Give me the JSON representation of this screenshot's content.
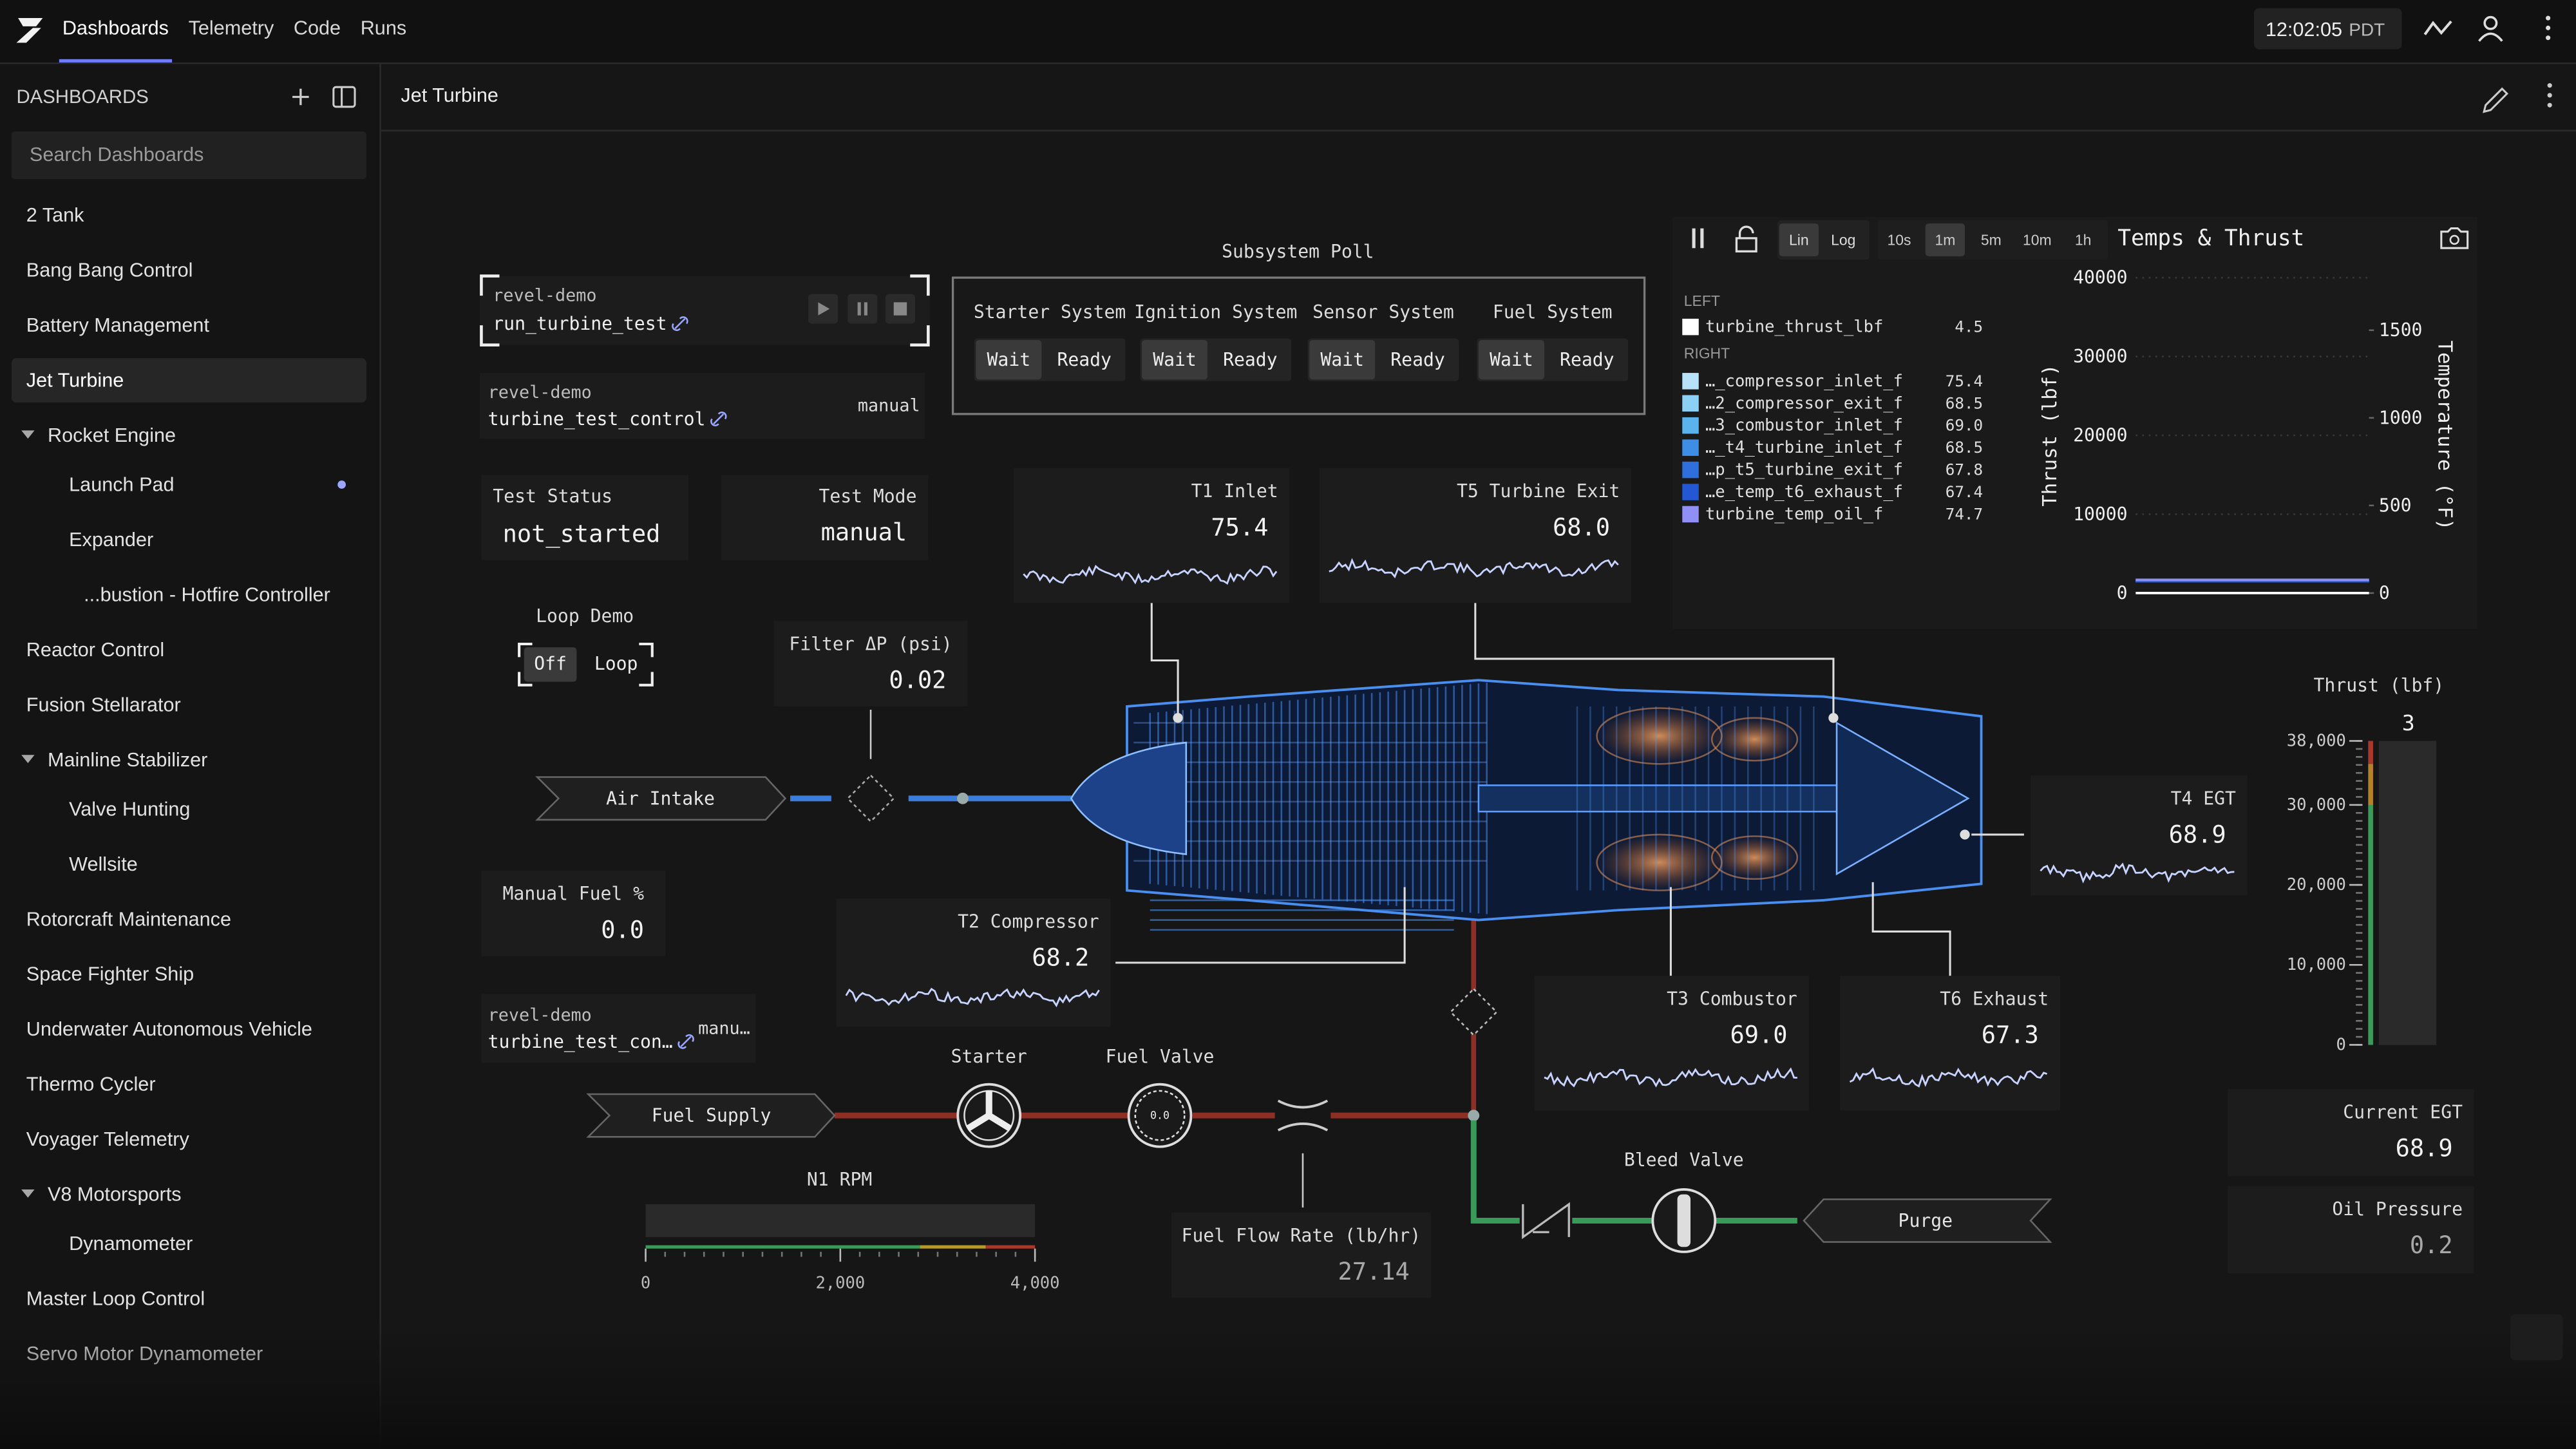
{
  "topbar": {
    "tabs": [
      "Dashboards",
      "Telemetry",
      "Code",
      "Runs"
    ],
    "active_tab": 0,
    "clock": "12:02:05",
    "timezone": "PDT"
  },
  "sidebar": {
    "title": "DASHBOARDS",
    "search_placeholder": "Search Dashboards",
    "items": [
      {
        "label": "2 Tank",
        "level": 0
      },
      {
        "label": "Bang Bang Control",
        "level": 0
      },
      {
        "label": "Battery Management",
        "level": 0
      },
      {
        "label": "Jet Turbine",
        "level": 0,
        "selected": true
      },
      {
        "label": "Rocket Engine",
        "level": 0,
        "group": true
      },
      {
        "label": "Launch Pad",
        "level": 1,
        "dot": true
      },
      {
        "label": "Expander",
        "level": 1
      },
      {
        "label": "...bustion - Hotfire Controller",
        "level": 2
      },
      {
        "label": "Reactor Control",
        "level": 0
      },
      {
        "label": "Fusion Stellarator",
        "level": 0
      },
      {
        "label": "Mainline Stabilizer",
        "level": 0,
        "group": true
      },
      {
        "label": "Valve Hunting",
        "level": 1
      },
      {
        "label": "Wellsite",
        "level": 1
      },
      {
        "label": "Rotorcraft Maintenance",
        "level": 0
      },
      {
        "label": "Space Fighter Ship",
        "level": 0
      },
      {
        "label": "Underwater Autonomous Vehicle",
        "level": 0
      },
      {
        "label": "Thermo Cycler",
        "level": 0
      },
      {
        "label": "Voyager Telemetry",
        "level": 0
      },
      {
        "label": "V8 Motorsports",
        "level": 0,
        "group": true
      },
      {
        "label": "Dynamometer",
        "level": 1
      },
      {
        "label": "Master Loop Control",
        "level": 0
      },
      {
        "label": "Servo Motor Dynamometer",
        "level": 0
      }
    ]
  },
  "page": {
    "title": "Jet Turbine"
  },
  "sequences": [
    {
      "project": "revel-demo",
      "name": "run_turbine_test",
      "controls": true
    },
    {
      "project": "revel-demo",
      "name": "turbine_test_control",
      "mode": "manual"
    },
    {
      "project": "revel-demo",
      "name": "turbine_test_con…",
      "mode": "manu…"
    }
  ],
  "subsystem_poll": {
    "title": "Subsystem Poll",
    "systems": [
      {
        "name": "Starter System",
        "options": [
          "Wait",
          "Ready"
        ],
        "selected": 0
      },
      {
        "name": "Ignition System",
        "options": [
          "Wait",
          "Ready"
        ],
        "selected": 0
      },
      {
        "name": "Sensor System",
        "options": [
          "Wait",
          "Ready"
        ],
        "selected": 0
      },
      {
        "name": "Fuel System",
        "options": [
          "Wait",
          "Ready"
        ],
        "selected": 0
      }
    ]
  },
  "test_status": {
    "label": "Test Status",
    "value": "not_started"
  },
  "test_mode": {
    "label": "Test Mode",
    "value": "manual"
  },
  "loop_demo": {
    "title": "Loop Demo",
    "options": [
      "Off",
      "Loop"
    ],
    "selected": 0
  },
  "readouts": [
    {
      "label": "T1 Inlet",
      "value": "75.4",
      "sparkline": true
    },
    {
      "label": "T5 Turbine Exit",
      "value": "68.0",
      "sparkline": true
    },
    {
      "label": "Filter ΔP (psi)",
      "value": "0.02"
    },
    {
      "label": "T4 EGT",
      "value": "68.9",
      "sparkline": true
    },
    {
      "label": "Manual Fuel %",
      "value": "0.0"
    },
    {
      "label": "T2 Compressor",
      "value": "68.2",
      "sparkline": true
    },
    {
      "label": "T3 Combustor",
      "value": "69.0",
      "sparkline": true
    },
    {
      "label": "T6 Exhaust",
      "value": "67.3",
      "sparkline": true
    },
    {
      "label": "Fuel Flow Rate (lb/hr)",
      "value": "27.14"
    },
    {
      "label": "Current EGT",
      "value": "68.9"
    },
    {
      "label": "Oil Pressure",
      "value": "0.2"
    }
  ],
  "schematic": {
    "air_intake": "Air Intake",
    "fuel_supply": "Fuel Supply",
    "purge": "Purge",
    "starter": "Starter",
    "fuel_valve": "Fuel Valve",
    "fuel_valve_reading": "0.0",
    "bleed_valve": "Bleed Valve"
  },
  "n1_rpm": {
    "label": "N1 RPM",
    "xlim": [
      0,
      4000
    ],
    "xticks": [
      0,
      {
        "value": 2000,
        "label": "2,000"
      },
      {
        "value": 4000,
        "label": "4,000"
      }
    ]
  },
  "thrust_gauge": {
    "label": "Thrust (lbf)",
    "value": "3",
    "ylim": [
      0,
      38000
    ],
    "yticks": [
      0,
      {
        "value": 10000,
        "label": "10,000"
      },
      {
        "value": 20000,
        "label": "20,000"
      },
      {
        "value": 30000,
        "label": "30,000"
      },
      {
        "value": 38000,
        "label": "38,000"
      }
    ]
  },
  "temps_thrust": {
    "type": "line",
    "title": "Temps & Thrust",
    "scale_options": [
      "Lin",
      "Log"
    ],
    "scale": 0,
    "windows": [
      "10s",
      "1m",
      "5m",
      "10m",
      "1h"
    ],
    "window": 1,
    "left_title": "LEFT",
    "right_title": "RIGHT",
    "ylabel": "Thrust (lbf)",
    "y2label": "Temperature (°F)",
    "ylim": [
      0,
      40000
    ],
    "yticks": [
      0,
      10000,
      20000,
      30000,
      40000
    ],
    "y2lim": [
      0,
      1800
    ],
    "y2ticks": [
      0,
      500,
      1000,
      1500
    ],
    "grid": true,
    "series": [
      {
        "name": "turbine_thrust_lbf",
        "color": "#ffffff",
        "value": "4.5"
      },
      {
        "name": "…_compressor_inlet_f",
        "color": "#b8e2f8",
        "value": "75.4",
        "axis": "y2"
      },
      {
        "name": "…2_compressor_exit_f",
        "color": "#8dd0f5",
        "value": "68.5",
        "axis": "y2"
      },
      {
        "name": "…3_combustor_inlet_f",
        "color": "#5bb3ee",
        "value": "69.0",
        "axis": "y2"
      },
      {
        "name": "…_t4_turbine_inlet_f",
        "color": "#3f8ee6",
        "value": "68.5",
        "axis": "y2"
      },
      {
        "name": "…p_t5_turbine_exit_f",
        "color": "#2f6fdd",
        "value": "67.8",
        "axis": "y2"
      },
      {
        "name": "…e_temp_t6_exhaust_f",
        "color": "#2457d4",
        "value": "67.4",
        "axis": "y2"
      },
      {
        "name": "turbine_temp_oil_f",
        "color": "#8f8ff5",
        "value": "74.7",
        "axis": "y2"
      }
    ]
  }
}
